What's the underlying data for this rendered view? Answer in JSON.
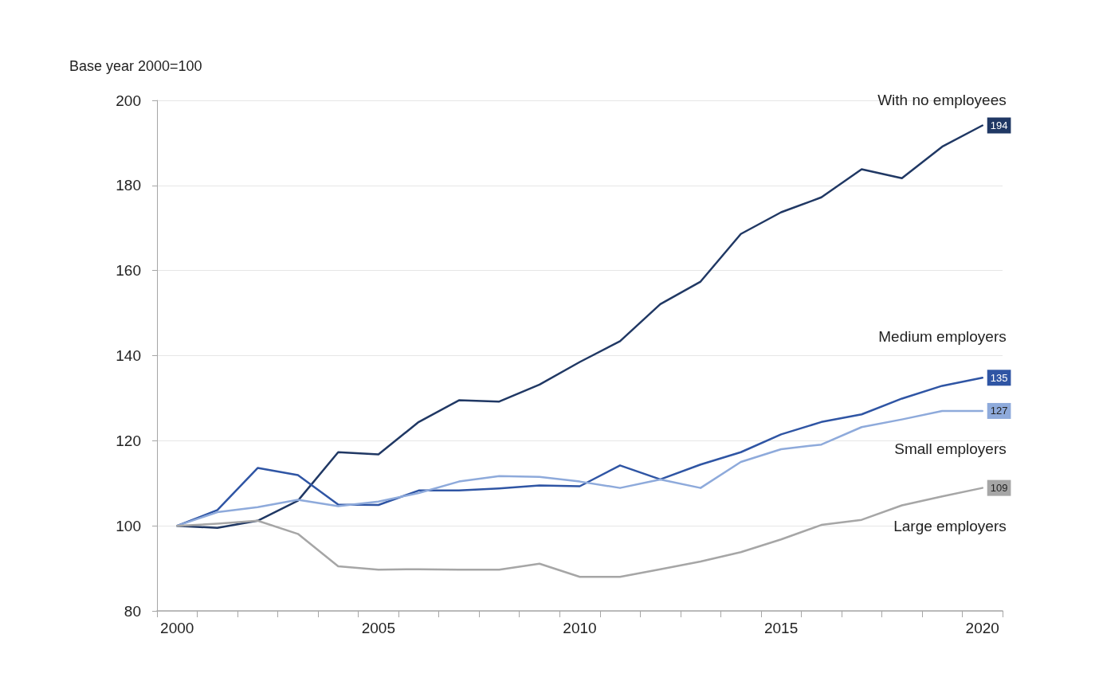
{
  "chart_data": {
    "type": "line",
    "ylabel": "Base year 2000=100",
    "categories": [
      "2000",
      null,
      null,
      null,
      null,
      "2005",
      null,
      null,
      null,
      null,
      "2010",
      null,
      null,
      null,
      null,
      "2015",
      null,
      null,
      null,
      null,
      "2020"
    ],
    "series": [
      {
        "name": "With no employees",
        "color": "#203864",
        "values": [
          100,
          99.5,
          101.2,
          105.9,
          117.3,
          116.8,
          124.4,
          129.5,
          129.2,
          133.2,
          138.5,
          143.4,
          152.1,
          157.4,
          168.6,
          173.7,
          177.2,
          183.8,
          181.7,
          189.1,
          194.1
        ],
        "value_labels": [
          null,
          null,
          null,
          null,
          null,
          null,
          null,
          null,
          null,
          null,
          null,
          null,
          null,
          null,
          null,
          null,
          null,
          null,
          null,
          null,
          "194"
        ]
      },
      {
        "name": "Medium employers",
        "color": "#2f55a4",
        "values": [
          100,
          103.7,
          113.6,
          111.9,
          105,
          104.9,
          108.3,
          108.3,
          108.8,
          109.5,
          109.3,
          114.2,
          110.9,
          114.4,
          117.3,
          121.5,
          124.4,
          126.2,
          129.9,
          132.9,
          134.8
        ],
        "value_labels": [
          null,
          null,
          null,
          null,
          null,
          null,
          null,
          null,
          null,
          null,
          null,
          null,
          null,
          null,
          null,
          null,
          null,
          null,
          null,
          null,
          "135"
        ]
      },
      {
        "name": "Small employers",
        "color": "#8eaadb",
        "values": [
          100,
          103.2,
          104.4,
          106.1,
          104.6,
          105.7,
          107.7,
          110.4,
          111.7,
          111.5,
          110.4,
          108.9,
          110.9,
          108.9,
          115,
          118,
          119.1,
          123.2,
          125,
          127,
          127
        ],
        "value_labels": [
          null,
          null,
          null,
          null,
          null,
          null,
          null,
          null,
          null,
          null,
          null,
          null,
          null,
          null,
          null,
          null,
          null,
          null,
          null,
          null,
          "127"
        ]
      },
      {
        "name": "Large employers",
        "color": "#a6a6a6",
        "values": [
          100,
          100.5,
          101.2,
          98.1,
          90.5,
          89.7,
          89.8,
          89.7,
          89.7,
          91.1,
          88,
          88,
          89.8,
          91.6,
          93.8,
          96.8,
          100.2,
          101.4,
          104.8,
          106.9,
          108.9
        ],
        "value_labels": [
          null,
          null,
          null,
          null,
          null,
          null,
          null,
          null,
          null,
          null,
          null,
          null,
          null,
          null,
          null,
          null,
          null,
          null,
          null,
          null,
          "109"
        ]
      }
    ],
    "ylim": [
      80,
      200
    ],
    "yticks": [
      80,
      100,
      120,
      140,
      160,
      180,
      200
    ],
    "grid": "y",
    "legend": false,
    "marker": "none",
    "line_style": "solid"
  }
}
